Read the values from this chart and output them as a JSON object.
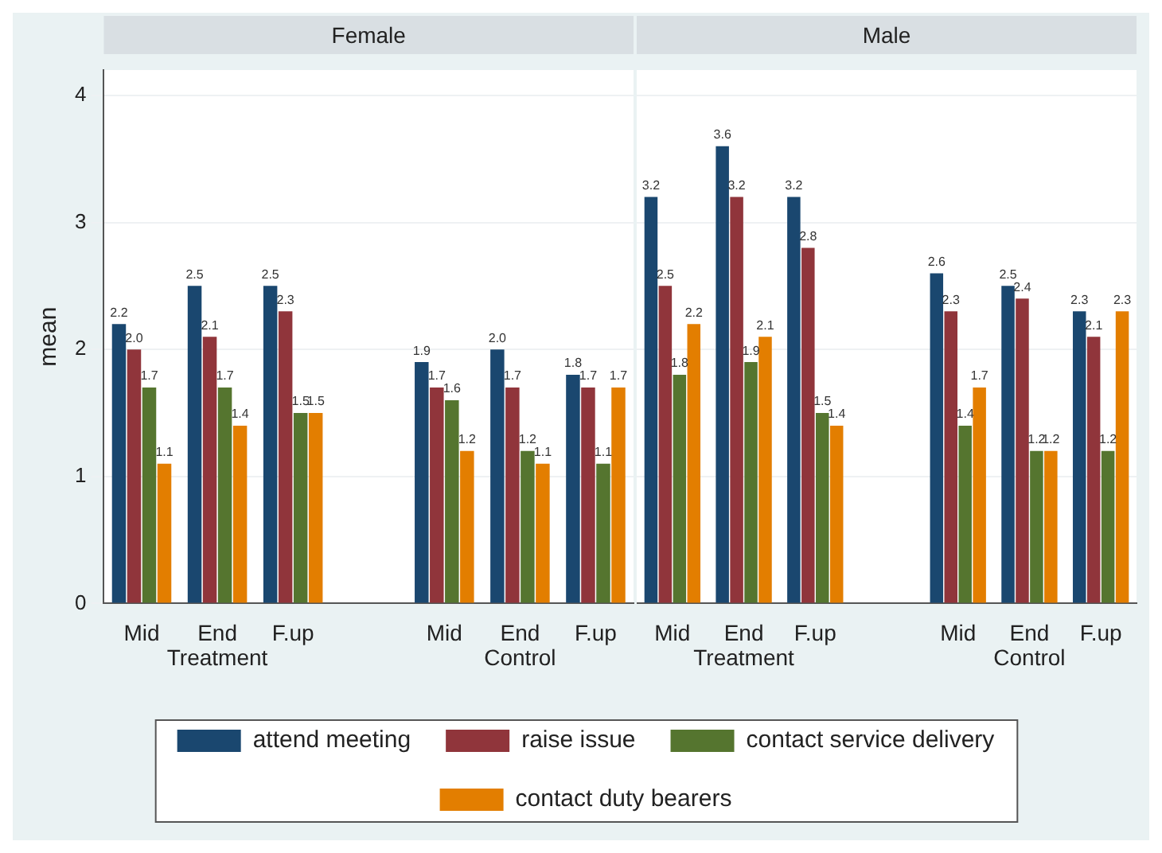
{
  "chart_data": [
    {
      "type": "bar",
      "title": "Female",
      "ylabel": "mean",
      "categories": [
        "Mid",
        "End",
        "F.up",
        null,
        "Mid",
        "End",
        "F.up"
      ],
      "series": [
        {
          "name": "attend meeting",
          "color": "#1a476f",
          "values": [
            2.2,
            2.5,
            2.5,
            null,
            1.9,
            2.0,
            1.8
          ],
          "value_labels": [
            "2.2",
            "2.5",
            "2.5",
            null,
            "1.9",
            "2.0",
            "1.8"
          ]
        },
        {
          "name": "raise issue",
          "color": "#90353b",
          "values": [
            2.0,
            2.1,
            2.3,
            null,
            1.7,
            1.7,
            1.7
          ],
          "value_labels": [
            "2.0",
            "2.1",
            "2.3",
            null,
            "1.7",
            "1.7",
            "1.7"
          ]
        },
        {
          "name": "contact service delivery",
          "color": "#55752f",
          "values": [
            1.7,
            1.7,
            1.5,
            null,
            1.6,
            1.2,
            1.1
          ],
          "value_labels": [
            "1.7",
            "1.7",
            "1.5",
            null,
            "1.6",
            "1.2",
            "1.1"
          ]
        },
        {
          "name": "contact duty bearers",
          "color": "#e37e00",
          "values": [
            1.1,
            1.4,
            1.5,
            null,
            1.2,
            1.1,
            1.7
          ],
          "value_labels": [
            "1.1",
            "1.4",
            "1.5",
            null,
            "1.2",
            "1.1",
            "1.7"
          ]
        }
      ],
      "annotations": [
        "Treatment",
        "Control"
      ],
      "ylim": [
        0,
        4.2
      ],
      "yticks": [
        0,
        1,
        2,
        3,
        4
      ],
      "grid": "y",
      "legend": "bottom"
    },
    {
      "type": "bar",
      "title": "Male",
      "categories": [
        "Mid",
        "End",
        "F.up",
        null,
        "Mid",
        "End",
        "F.up"
      ],
      "series": [
        {
          "color": "#1a476f",
          "values": [
            3.2,
            3.6,
            3.2,
            null,
            2.6,
            2.5,
            2.3
          ],
          "value_labels": [
            "3.2",
            "3.6",
            "3.2",
            null,
            "2.6",
            "2.5",
            "2.3"
          ]
        },
        {
          "color": "#90353b",
          "values": [
            2.5,
            3.2,
            2.8,
            null,
            2.3,
            2.4,
            2.1
          ],
          "value_labels": [
            "2.5",
            "3.2",
            "2.8",
            null,
            "2.3",
            "2.4",
            "2.1"
          ]
        },
        {
          "color": "#55752f",
          "values": [
            1.8,
            1.9,
            1.5,
            null,
            1.4,
            1.2,
            1.2
          ],
          "value_labels": [
            "1.8",
            "1.9",
            "1.5",
            null,
            "1.4",
            "1.2",
            "1.2"
          ]
        },
        {
          "color": "#e37e00",
          "values": [
            2.2,
            2.1,
            1.4,
            null,
            1.7,
            1.2,
            2.3
          ],
          "value_labels": [
            "2.2",
            "2.1",
            "1.4",
            null,
            "1.7",
            "1.2",
            "2.3"
          ]
        }
      ],
      "annotations": [
        "Treatment",
        "Control"
      ],
      "ylim": [
        0,
        4.2
      ],
      "yticks": [
        0,
        1,
        2,
        3,
        4
      ],
      "grid": "y",
      "tick_labels": "x"
    }
  ]
}
